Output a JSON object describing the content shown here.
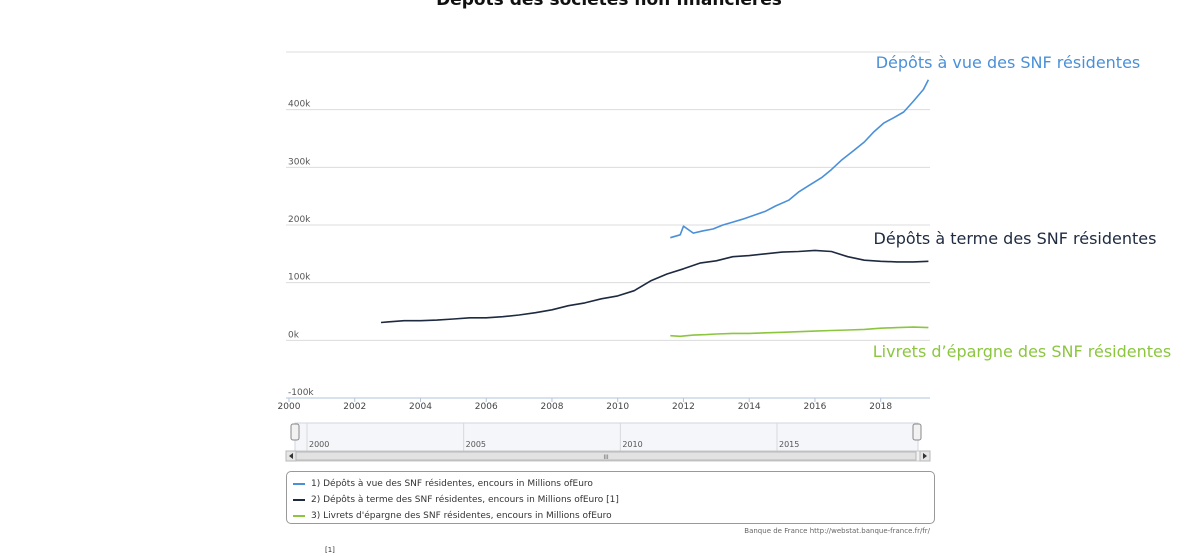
{
  "title": "Dépôts des sociétés non financières",
  "colors": {
    "series1": "#4a90d9",
    "series2": "#1e2a40",
    "series3": "#8cc63f"
  },
  "chart_data": {
    "type": "line",
    "title": "Dépôts des sociétés non financières",
    "xlim": [
      2000,
      2019.5
    ],
    "ylim": [
      -100000,
      500000
    ],
    "x_ticks": [
      "2000",
      "2002",
      "2004",
      "2006",
      "2008",
      "2010",
      "2012",
      "2014",
      "2016",
      "2018"
    ],
    "y_ticks": [
      "-100k",
      "0k",
      "100k",
      "200k",
      "300k",
      "400k"
    ],
    "navigator_ticks": [
      "2000",
      "2005",
      "2010",
      "2015"
    ],
    "series": [
      {
        "name": "Dépôts à vue des SNF résidentes",
        "legend": "1) Dépôts à vue des SNF résidentes, encours in Millions ofEuro",
        "color": "#4a90d9",
        "points": [
          [
            2011.6,
            178000
          ],
          [
            2011.9,
            183000
          ],
          [
            2012.0,
            198000
          ],
          [
            2012.3,
            186000
          ],
          [
            2012.6,
            190000
          ],
          [
            2012.9,
            193000
          ],
          [
            2013.2,
            200000
          ],
          [
            2013.5,
            205000
          ],
          [
            2013.8,
            210000
          ],
          [
            2014.2,
            218000
          ],
          [
            2014.5,
            224000
          ],
          [
            2014.8,
            233000
          ],
          [
            2015.2,
            243000
          ],
          [
            2015.5,
            257000
          ],
          [
            2015.8,
            268000
          ],
          [
            2016.2,
            282000
          ],
          [
            2016.5,
            296000
          ],
          [
            2016.8,
            312000
          ],
          [
            2017.2,
            330000
          ],
          [
            2017.5,
            344000
          ],
          [
            2017.8,
            362000
          ],
          [
            2018.1,
            377000
          ],
          [
            2018.4,
            386000
          ],
          [
            2018.7,
            396000
          ],
          [
            2019.0,
            415000
          ],
          [
            2019.3,
            435000
          ],
          [
            2019.45,
            452000
          ]
        ]
      },
      {
        "name": "Dépôts à terme des SNF résidentes",
        "legend": "2) Dépôts à terme des SNF résidentes, encours in Millions ofEuro [1]",
        "color": "#1e2a40",
        "points": [
          [
            2002.8,
            31000
          ],
          [
            2003.0,
            32000
          ],
          [
            2003.5,
            34000
          ],
          [
            2004.0,
            34000
          ],
          [
            2004.5,
            35000
          ],
          [
            2005.0,
            37000
          ],
          [
            2005.5,
            39000
          ],
          [
            2006.0,
            39000
          ],
          [
            2006.5,
            41000
          ],
          [
            2007.0,
            44000
          ],
          [
            2007.5,
            48000
          ],
          [
            2008.0,
            53000
          ],
          [
            2008.5,
            60000
          ],
          [
            2009.0,
            65000
          ],
          [
            2009.5,
            72000
          ],
          [
            2010.0,
            77000
          ],
          [
            2010.5,
            86000
          ],
          [
            2011.0,
            103000
          ],
          [
            2011.5,
            115000
          ],
          [
            2012.0,
            124000
          ],
          [
            2012.5,
            134000
          ],
          [
            2013.0,
            138000
          ],
          [
            2013.5,
            145000
          ],
          [
            2014.0,
            147000
          ],
          [
            2014.5,
            150000
          ],
          [
            2015.0,
            153000
          ],
          [
            2015.5,
            154000
          ],
          [
            2016.0,
            156000
          ],
          [
            2016.5,
            154000
          ],
          [
            2017.0,
            145000
          ],
          [
            2017.5,
            139000
          ],
          [
            2018.0,
            137000
          ],
          [
            2018.5,
            136000
          ],
          [
            2019.0,
            136000
          ],
          [
            2019.45,
            137000
          ]
        ]
      },
      {
        "name": "Livrets d'épargne des SNF résidentes",
        "legend": "3) Livrets d'épargne des SNF résidentes, encours in Millions ofEuro",
        "color": "#8cc63f",
        "points": [
          [
            2011.6,
            8000
          ],
          [
            2011.9,
            7000
          ],
          [
            2012.3,
            9000
          ],
          [
            2012.7,
            10000
          ],
          [
            2013.0,
            11000
          ],
          [
            2013.5,
            12000
          ],
          [
            2014.0,
            12000
          ],
          [
            2014.5,
            13000
          ],
          [
            2015.0,
            14000
          ],
          [
            2015.5,
            15000
          ],
          [
            2016.0,
            16000
          ],
          [
            2016.5,
            17000
          ],
          [
            2017.0,
            18000
          ],
          [
            2017.5,
            19000
          ],
          [
            2018.0,
            21000
          ],
          [
            2018.5,
            22000
          ],
          [
            2019.0,
            23000
          ],
          [
            2019.45,
            22000
          ]
        ]
      }
    ]
  },
  "annotations": {
    "a1": "Dépôts à vue des SNF résidentes",
    "a2": "Dépôts à terme des SNF résidentes",
    "a3": "Livrets d’épargne des SNF résidentes"
  },
  "legend_items": [
    "1) Dépôts à vue des SNF résidentes, encours in Millions ofEuro",
    "2) Dépôts à terme des SNF résidentes, encours in Millions ofEuro [1]",
    "3) Livrets d'épargne des SNF résidentes, encours in Millions ofEuro"
  ],
  "credit": "Banque de France http://webstat.banque-france.fr/fr/",
  "footnote": "[1]",
  "scrollbar_grip": "III"
}
